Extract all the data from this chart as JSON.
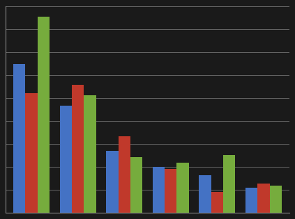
{
  "series": {
    "blue": [
      72,
      52,
      30,
      22,
      18,
      12
    ],
    "red": [
      58,
      62,
      37,
      21,
      10,
      14
    ],
    "green": [
      95,
      57,
      27,
      24,
      28,
      13
    ]
  },
  "bar_colors": {
    "blue": "#4472C4",
    "red": "#C0392B",
    "green": "#76AC3D"
  },
  "background_color": "#1A1A1A",
  "plot_bg_color": "#1A1A1A",
  "grid_color": "#666666",
  "ylim": [
    0,
    100
  ],
  "bar_width": 0.26,
  "n_groups": 6
}
